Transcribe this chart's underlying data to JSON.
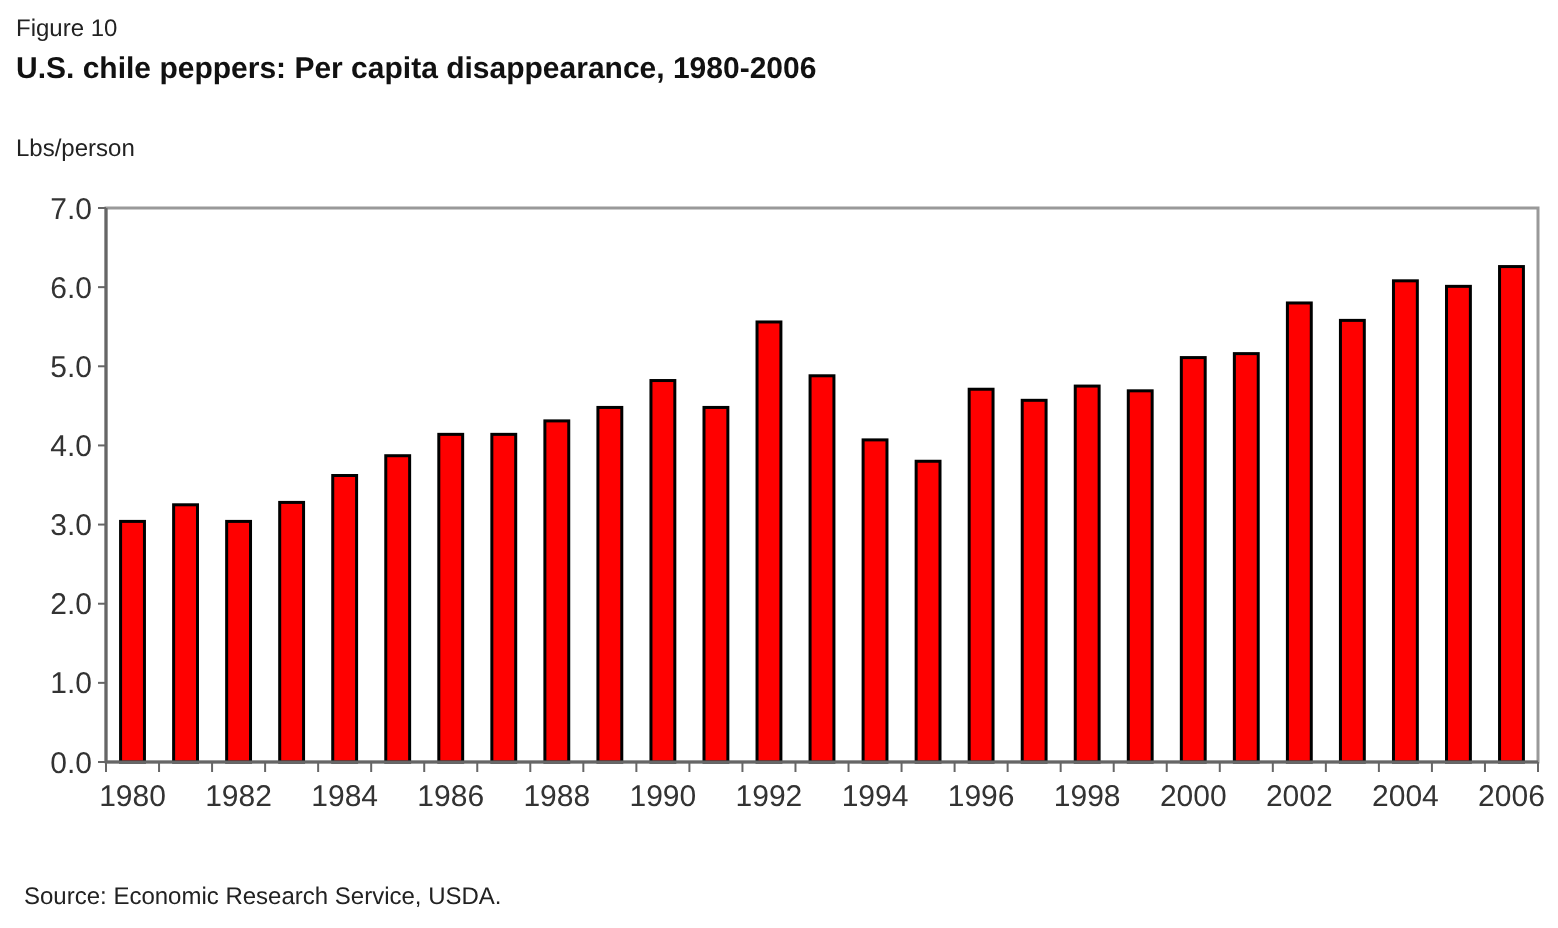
{
  "chart_data": {
    "type": "bar",
    "title": "U.S. chile peppers:  Per capita disappearance, 1980-2006",
    "ylabel": "Lbs/person",
    "annotations": [
      "Figure 10",
      "Source:  Economic Research Service, USDA."
    ],
    "categories": [
      "1980",
      null,
      "1982",
      null,
      "1984",
      null,
      "1986",
      null,
      "1988",
      null,
      "1990",
      null,
      "1992",
      null,
      "1994",
      null,
      "1996",
      null,
      "1998",
      null,
      "2000",
      null,
      "2002",
      null,
      "2004",
      null,
      "2006"
    ],
    "values": [
      3.04,
      3.25,
      3.04,
      3.28,
      3.62,
      3.87,
      4.14,
      4.14,
      4.31,
      4.48,
      4.82,
      4.48,
      5.56,
      4.88,
      4.07,
      3.8,
      4.71,
      4.57,
      4.75,
      4.69,
      5.11,
      5.16,
      5.8,
      5.58,
      6.08,
      6.01,
      6.26
    ],
    "color": "#ff0000",
    "ylim": [
      0,
      7
    ],
    "yticks": [
      {
        "value": 0,
        "label": "0.0"
      },
      {
        "value": 1,
        "label": "1.0"
      },
      {
        "value": 2,
        "label": "2.0"
      },
      {
        "value": 3,
        "label": "3.0"
      },
      {
        "value": 4,
        "label": "4.0"
      },
      {
        "value": 5,
        "label": "5.0"
      },
      {
        "value": 6,
        "label": "6.0"
      },
      {
        "value": 7,
        "label": "7.0"
      }
    ],
    "grid": false
  }
}
